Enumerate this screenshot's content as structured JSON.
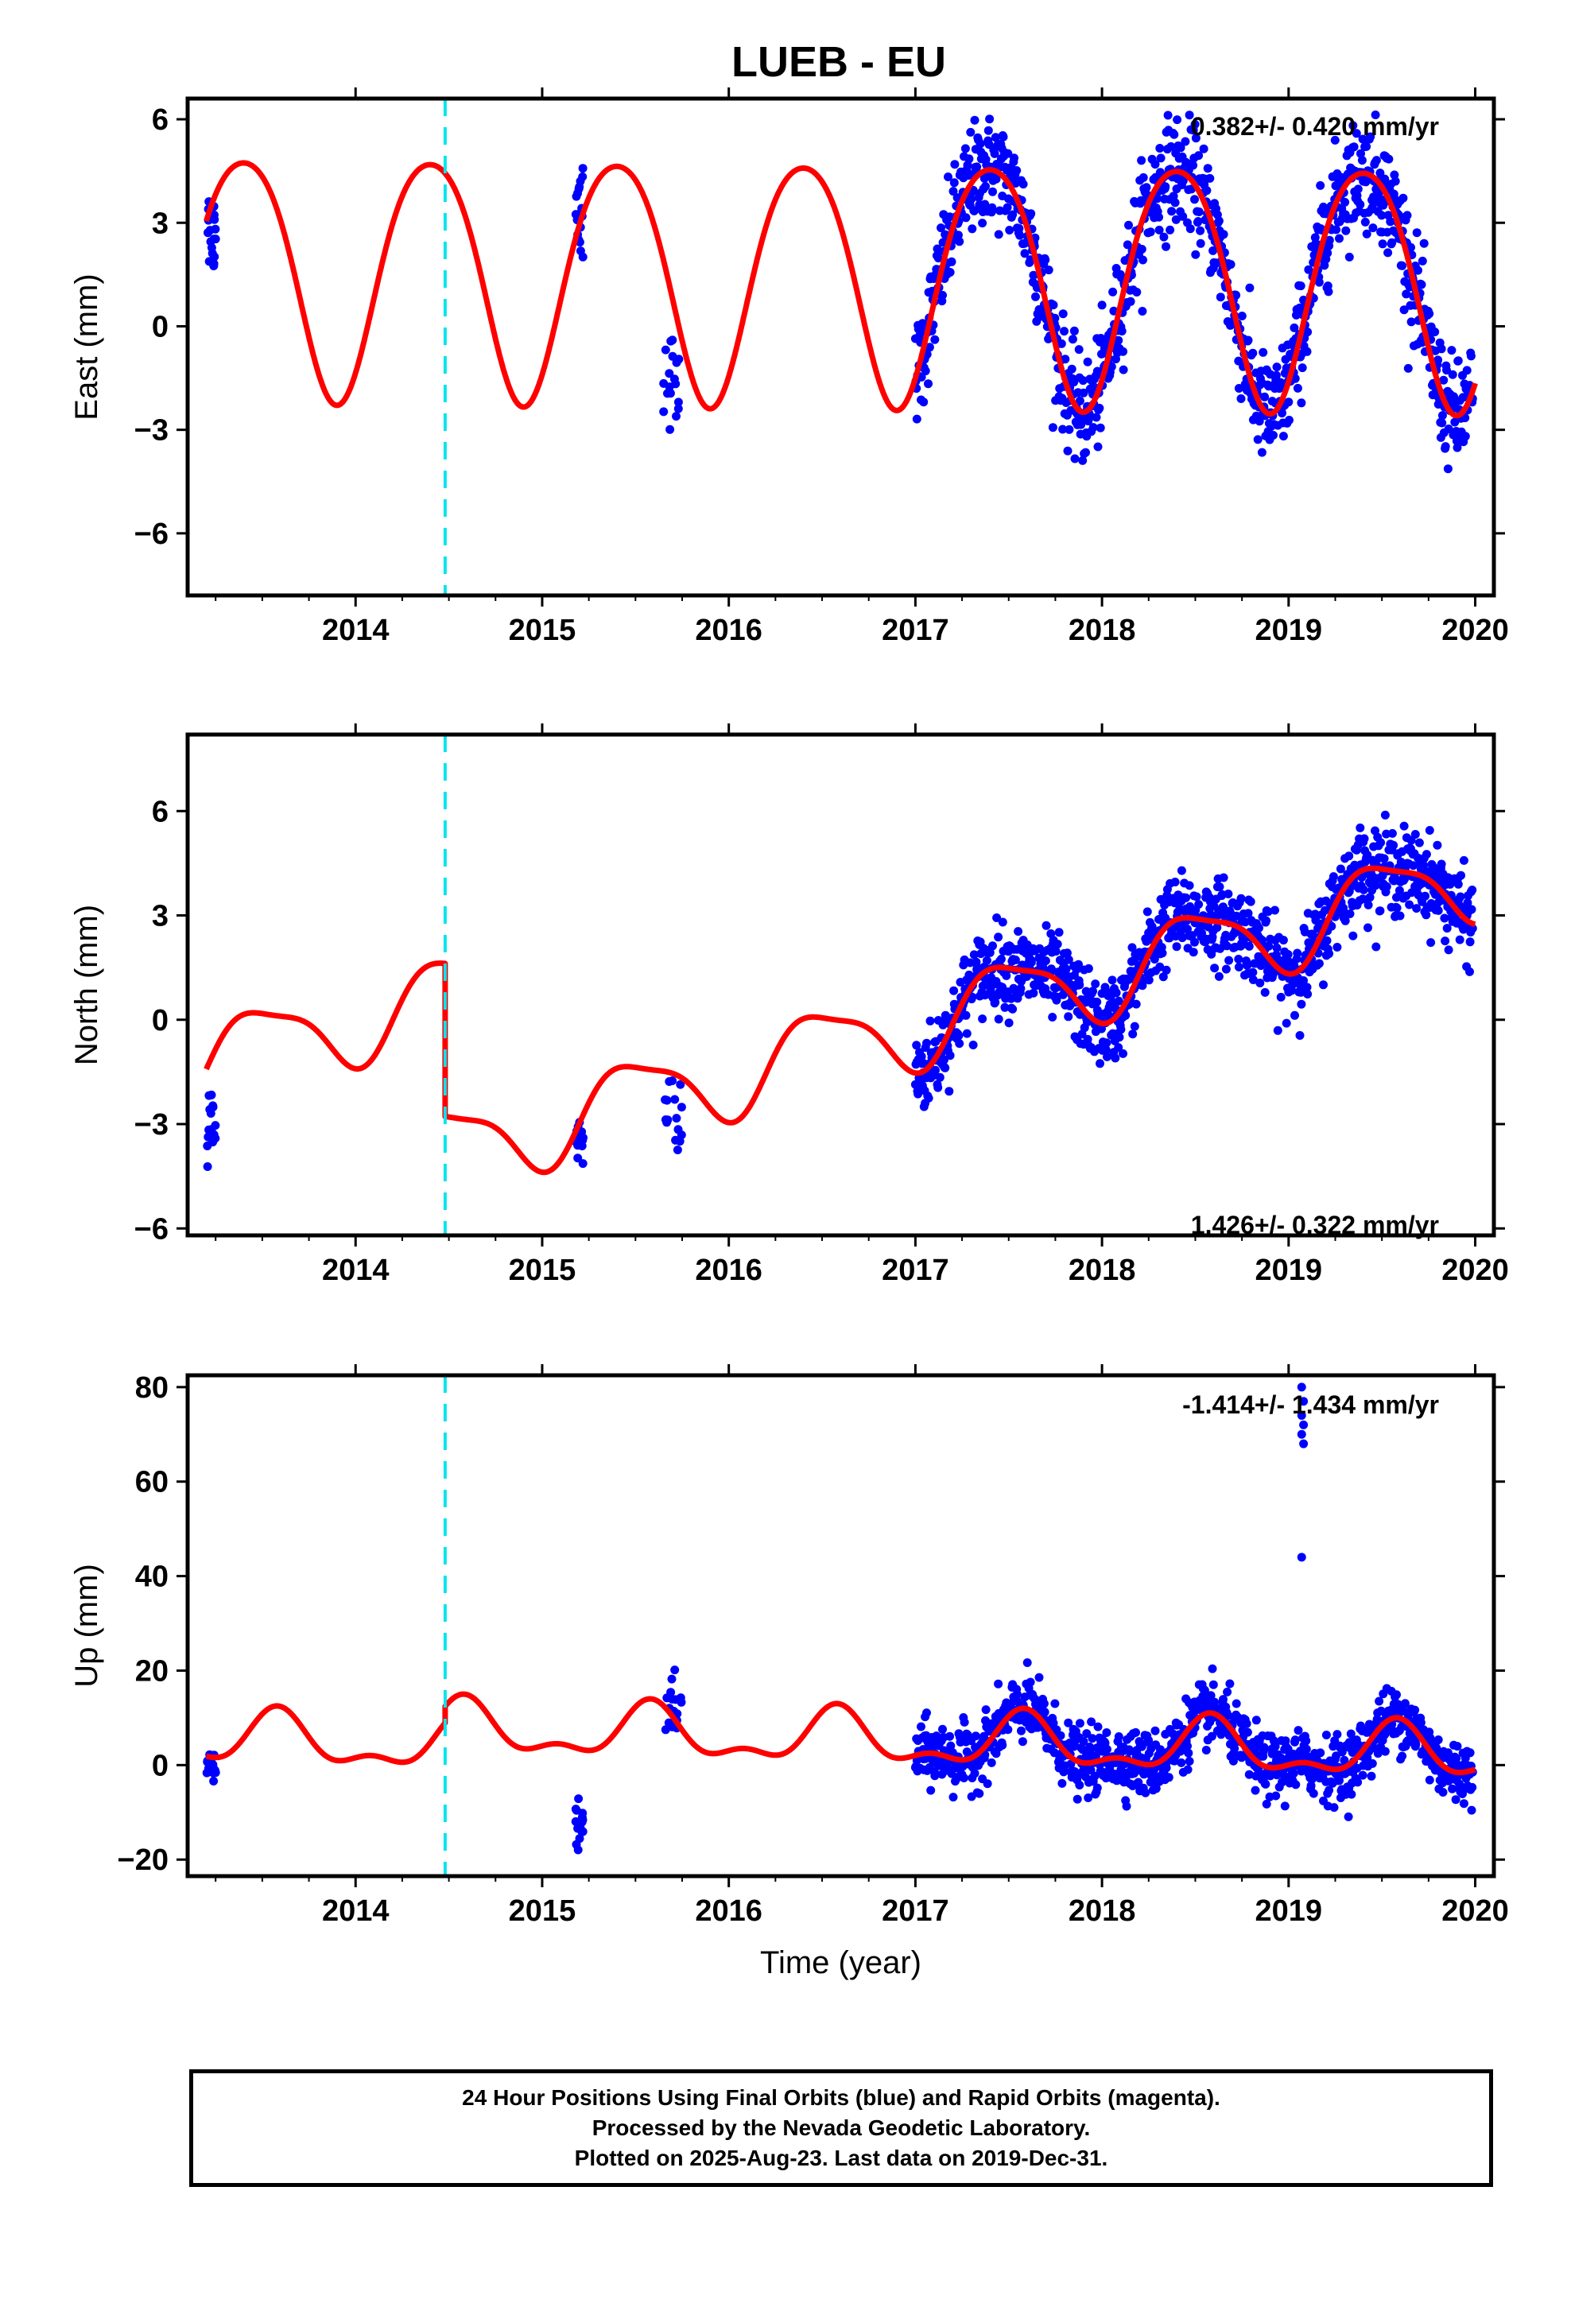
{
  "title": "LUEB - EU",
  "footer": {
    "line1": "24 Hour Positions Using Final Orbits (blue) and Rapid Orbits (magenta).",
    "line2": "Processed by the Nevada Geodetic Laboratory.",
    "line3": "Plotted on 2025-Aug-23. Last data on 2019-Dec-31."
  },
  "colors": {
    "data": "#0000ff",
    "model": "#ff0000",
    "step": "#00e5ee",
    "frame": "#000000"
  },
  "chart_data": [
    {
      "type": "scatter",
      "ylabel": "East (mm)",
      "xlabel": "",
      "rate_label": "0.382+/- 0.420 mm/yr",
      "xlim": [
        2013.1,
        2020.1
      ],
      "ylim": [
        -7.8,
        6.6
      ],
      "xticks": [
        2014,
        2015,
        2016,
        2017,
        2018,
        2019,
        2020
      ],
      "xtick_labels": [
        "2014",
        "2015",
        "2016",
        "2017",
        "2018",
        "2019",
        "2020"
      ],
      "yticks": [
        6,
        3,
        0,
        -3,
        -6
      ],
      "ytick_labels": [
        "6",
        "3",
        "0",
        "−3",
        "−6"
      ],
      "step_epoch": 2014.48,
      "model": {
        "type": "seasonal",
        "base": 1.65,
        "rate": -0.05,
        "amp1": 3.5,
        "phase1_peak": 2013.4,
        "amp2": 0.4,
        "phase2_peak": 2013.15
      },
      "fit_segment": {
        "x_start": 2017.0,
        "x_end": 2020.0,
        "y_start": -2.5,
        "y_end": -3.2,
        "amp1": 3.3,
        "phase1_peak": 2017.4
      },
      "points_summary": [
        {
          "x_range": [
            2013.2,
            2013.25
          ],
          "center": 2.8,
          "spread": 1.1
        },
        {
          "x_range": [
            2015.18,
            2015.22
          ],
          "center": 3.5,
          "spread": 1.4
        },
        {
          "x_range": [
            2015.65,
            2015.75
          ],
          "center": -1.4,
          "spread": 1.1
        },
        {
          "x_range": [
            2017.0,
            2019.99
          ],
          "follows": "model",
          "spread": 1.3
        }
      ]
    },
    {
      "type": "scatter",
      "ylabel": "North (mm)",
      "xlabel": "",
      "rate_label": "1.426+/- 0.322 mm/yr",
      "xlim": [
        2013.1,
        2020.1
      ],
      "ylim": [
        -6.2,
        8.2
      ],
      "xticks": [
        2014,
        2015,
        2016,
        2017,
        2018,
        2019,
        2020
      ],
      "xtick_labels": [
        "2014",
        "2015",
        "2016",
        "2017",
        "2018",
        "2019",
        "2020"
      ],
      "yticks": [
        6,
        3,
        0,
        -3,
        -6
      ],
      "ytick_labels": [
        "6",
        "3",
        "0",
        "−3",
        "−6"
      ],
      "step_epoch": 2014.48,
      "model": {
        "type": "seasonal",
        "base": -1.3,
        "rate": 1.426,
        "amp1": 1.15,
        "phase1_peak": 2013.5,
        "amp2": 0.3,
        "phase2_peak": 2013.3,
        "step_offset": -4.4
      },
      "points_summary": [
        {
          "x_range": [
            2013.2,
            2013.25
          ],
          "center": -3.2,
          "spread": 0.9
        },
        {
          "x_range": [
            2015.18,
            2015.22
          ],
          "center": -3.5,
          "spread": 0.8
        },
        {
          "x_range": [
            2015.65,
            2015.75
          ],
          "center": -2.8,
          "spread": 1.0
        },
        {
          "x_range": [
            2017.0,
            2019.99
          ],
          "follows": "model",
          "spread": 1.0
        }
      ]
    },
    {
      "type": "scatter",
      "ylabel": "Up (mm)",
      "xlabel": "Time (year)",
      "rate_label": "-1.414+/- 1.434 mm/yr",
      "xlim": [
        2013.1,
        2020.1
      ],
      "ylim": [
        -23.5,
        82.5
      ],
      "xticks": [
        2014,
        2015,
        2016,
        2017,
        2018,
        2019,
        2020
      ],
      "xtick_labels": [
        "2014",
        "2015",
        "2016",
        "2017",
        "2018",
        "2019",
        "2020"
      ],
      "yticks": [
        80,
        60,
        40,
        20,
        0,
        -20
      ],
      "ytick_labels": [
        "80",
        "60",
        "40",
        "20",
        "0",
        "−20"
      ],
      "step_epoch": 2014.48,
      "model": {
        "type": "seasonal",
        "base": 5.5,
        "rate": -1.0,
        "amp1": 5.0,
        "phase1_peak": 2013.58,
        "amp2": 2.5,
        "phase2_peak": 2013.58,
        "step_offset": 3.5
      },
      "outliers": [
        {
          "x": 2019.07,
          "y": 80
        },
        {
          "x": 2019.08,
          "y": 77
        },
        {
          "x": 2019.07,
          "y": 74
        },
        {
          "x": 2019.08,
          "y": 72
        },
        {
          "x": 2019.07,
          "y": 70
        },
        {
          "x": 2019.08,
          "y": 68
        },
        {
          "x": 2019.07,
          "y": 44
        }
      ],
      "points_summary": [
        {
          "x_range": [
            2013.2,
            2013.25
          ],
          "center": 0.5,
          "spread": 2.5
        },
        {
          "x_range": [
            2015.18,
            2015.22
          ],
          "center": -12.5,
          "spread": 4.0
        },
        {
          "x_range": [
            2015.65,
            2015.75
          ],
          "center": 12.0,
          "spread": 5.0
        },
        {
          "x_range": [
            2017.0,
            2019.99
          ],
          "follows": "model",
          "spread": 5.5
        }
      ]
    }
  ]
}
